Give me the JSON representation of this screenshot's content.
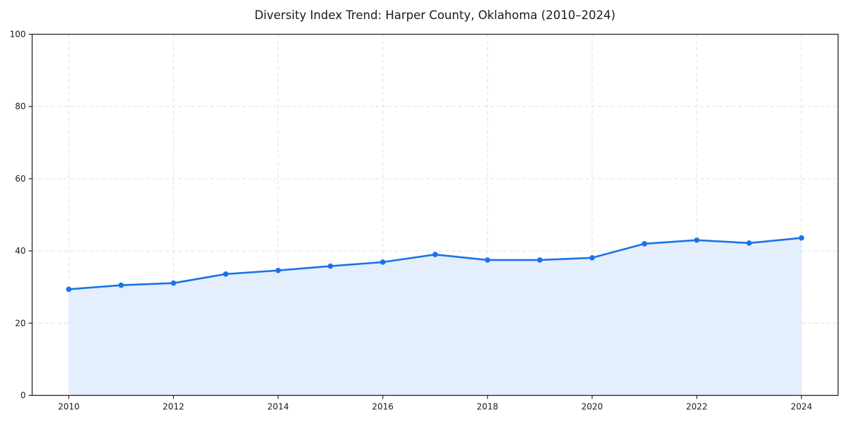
{
  "chart_data": {
    "type": "line",
    "title": "Diversity Index Trend: Harper County, Oklahoma (2010–2024)",
    "x": [
      2010,
      2011,
      2012,
      2013,
      2014,
      2015,
      2016,
      2017,
      2018,
      2019,
      2020,
      2021,
      2022,
      2023,
      2024
    ],
    "values": [
      29.4,
      30.5,
      31.1,
      33.6,
      34.6,
      35.8,
      36.9,
      39.0,
      37.5,
      37.5,
      38.1,
      42.0,
      43.0,
      42.2,
      43.6
    ],
    "series_name": "Diversity Index",
    "xlabel": "",
    "ylabel": "",
    "xlim": [
      2009.3,
      2024.7
    ],
    "ylim": [
      0,
      100
    ],
    "xticks": [
      2010,
      2012,
      2014,
      2016,
      2018,
      2020,
      2022,
      2024
    ],
    "yticks": [
      0,
      20,
      40,
      60,
      80,
      100
    ],
    "grid": true,
    "grid_style": "dashed",
    "legend_position": "none",
    "area_fill": true,
    "marker": "circle",
    "colors": {
      "line": "#1a73e8",
      "marker": "#1a73e8",
      "fill": "#e4eefd",
      "grid": "#dedede",
      "spine": "#262626",
      "tick": "#262626",
      "text": "#1a1a1a",
      "background": "#ffffff"
    }
  }
}
